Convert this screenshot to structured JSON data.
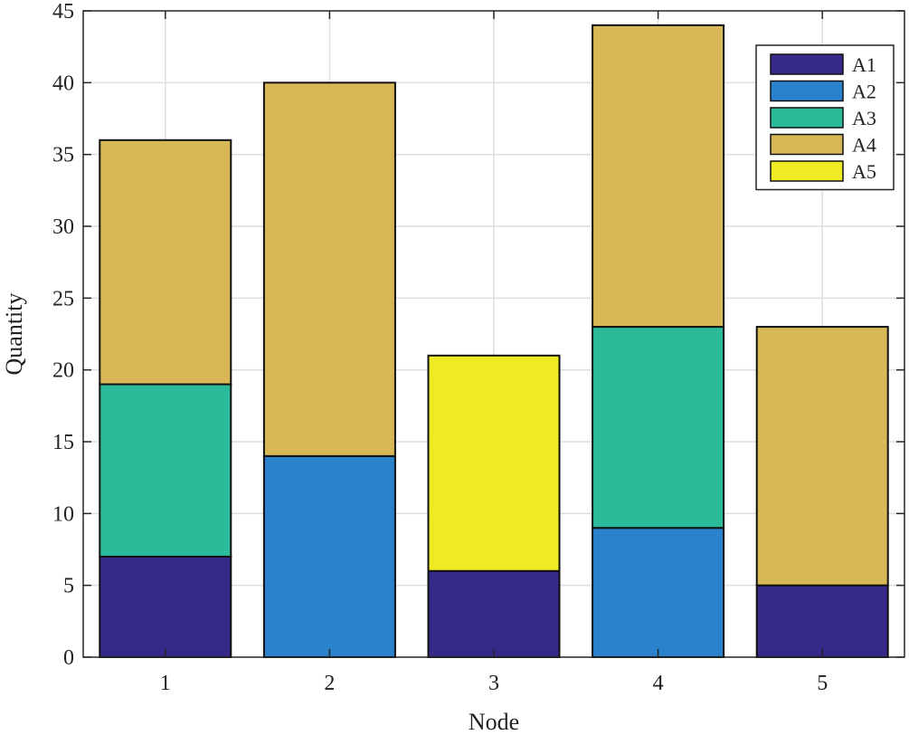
{
  "chart_data": {
    "type": "bar",
    "stacked": true,
    "title": "",
    "xlabel": "Node",
    "ylabel": "Quantity",
    "categories": [
      "1",
      "2",
      "3",
      "4",
      "5"
    ],
    "ylim": [
      0,
      45
    ],
    "yticks": [
      0,
      5,
      10,
      15,
      20,
      25,
      30,
      35,
      40,
      45
    ],
    "grid": true,
    "legend_position": "top-right",
    "series": [
      {
        "name": "A1",
        "color": "#352a87",
        "values": [
          7,
          0,
          6,
          0,
          5
        ]
      },
      {
        "name": "A2",
        "color": "#2a82cc",
        "values": [
          0,
          14,
          0,
          9,
          0
        ]
      },
      {
        "name": "A3",
        "color": "#2bbb9b",
        "values": [
          12,
          0,
          0,
          14,
          0
        ]
      },
      {
        "name": "A4",
        "color": "#d8b856",
        "values": [
          17,
          26,
          0,
          21,
          18
        ]
      },
      {
        "name": "A5",
        "color": "#eeea24",
        "values": [
          0,
          0,
          15,
          0,
          0
        ]
      }
    ]
  }
}
